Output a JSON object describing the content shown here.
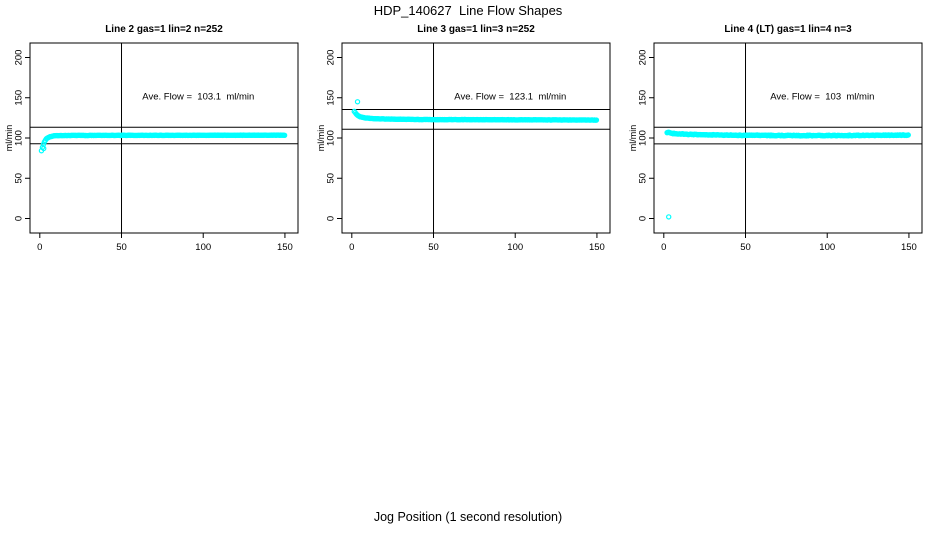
{
  "page": {
    "main_title": "HDP_140627  Line Flow Shapes",
    "bottom_axis_label": "Jog Position (1 second resolution)"
  },
  "chart_data": [
    {
      "type": "scatter",
      "title": "Line 2 gas=1 lin=2 n=252",
      "annotation": "Ave. Flow =  103.1  ml/min",
      "ave_flow_ml_min": 103.1,
      "n_points": 252,
      "ylabel": "ml/min",
      "x_ticks": [
        0,
        50,
        100,
        150
      ],
      "y_ticks": [
        0,
        50,
        100,
        150,
        200
      ],
      "xlim": [
        -6,
        158
      ],
      "ylim": [
        -18,
        218
      ],
      "grid": false,
      "marker": {
        "shape": "open-circle",
        "color": "#00FFFF"
      },
      "h_ref_lines": [
        113.4,
        92.8
      ],
      "v_ref_line": 50,
      "annotation_pos": [
        97,
        148
      ],
      "series_profile": [
        [
          1,
          84
        ],
        [
          2,
          91
        ],
        [
          3,
          96
        ],
        [
          4,
          99
        ],
        [
          6,
          101.5
        ],
        [
          9,
          102.8
        ],
        [
          20,
          103.2
        ],
        [
          150,
          103.5
        ]
      ],
      "outlier_points": [
        [
          2.4,
          87
        ]
      ],
      "sample_step": 0.6,
      "jitter": 0.35
    },
    {
      "type": "scatter",
      "title": "Line 3 gas=1 lin=3 n=252",
      "annotation": "Ave. Flow =  123.1  ml/min",
      "ave_flow_ml_min": 123.1,
      "n_points": 252,
      "ylabel": "ml/min",
      "x_ticks": [
        0,
        50,
        100,
        150
      ],
      "y_ticks": [
        0,
        50,
        100,
        150,
        200
      ],
      "xlim": [
        -6,
        158
      ],
      "ylim": [
        -18,
        218
      ],
      "grid": false,
      "marker": {
        "shape": "open-circle",
        "color": "#00FFFF"
      },
      "h_ref_lines": [
        135.4,
        110.8
      ],
      "v_ref_line": 50,
      "annotation_pos": [
        97,
        148
      ],
      "series_profile": [
        [
          1.5,
          133
        ],
        [
          3,
          129
        ],
        [
          5,
          126.5
        ],
        [
          8,
          125
        ],
        [
          15,
          123.8
        ],
        [
          40,
          123
        ],
        [
          150,
          122.3
        ]
      ],
      "outlier_points": [
        [
          3.5,
          145
        ]
      ],
      "sample_step": 0.6,
      "jitter": 0.35
    },
    {
      "type": "scatter",
      "title": "Line 4 (LT) gas=1 lin=4 n=3",
      "annotation": "Ave. Flow =  103  ml/min",
      "ave_flow_ml_min": 103,
      "n_points": 3,
      "ylabel": "ml/min",
      "x_ticks": [
        0,
        50,
        100,
        150
      ],
      "y_ticks": [
        0,
        50,
        100,
        150,
        200
      ],
      "xlim": [
        -6,
        158
      ],
      "ylim": [
        -18,
        218
      ],
      "grid": false,
      "marker": {
        "shape": "open-circle",
        "color": "#00FFFF"
      },
      "h_ref_lines": [
        113.3,
        92.7
      ],
      "v_ref_line": 50,
      "annotation_pos": [
        97,
        148
      ],
      "series_profile": [
        [
          2,
          107
        ],
        [
          6,
          105.5
        ],
        [
          15,
          104.5
        ],
        [
          40,
          103.5
        ],
        [
          80,
          103
        ],
        [
          120,
          103.2
        ],
        [
          150,
          103.5
        ]
      ],
      "outlier_points": [
        [
          3,
          2
        ]
      ],
      "sample_step": 0.6,
      "jitter": 0.9
    }
  ]
}
